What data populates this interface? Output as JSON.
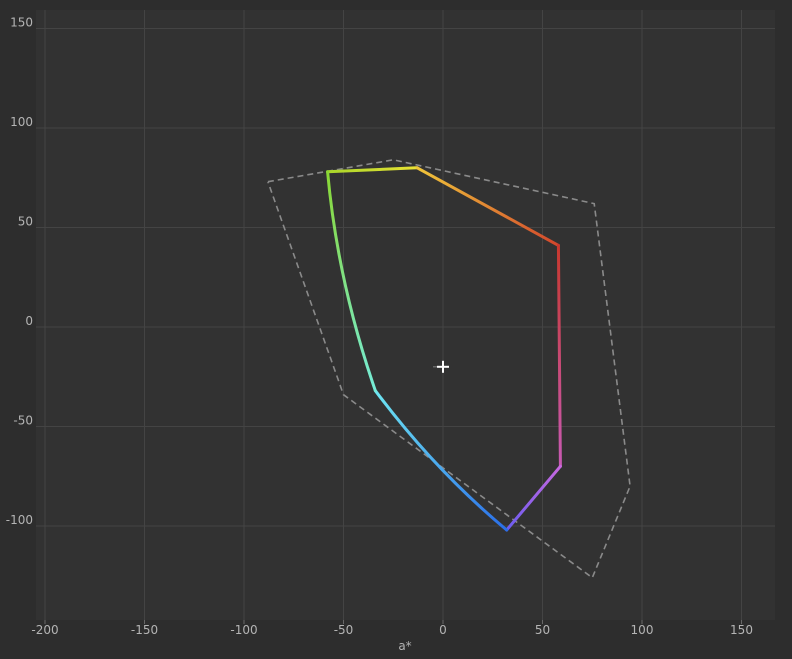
{
  "chart_data": {
    "type": "gamut-plot",
    "xlabel": "a*",
    "ylabel": "",
    "xlim": [
      -205,
      165
    ],
    "ylim": [
      -148,
      159
    ],
    "xticks": [
      -200,
      -150,
      -100,
      -50,
      0,
      50,
      100,
      150
    ],
    "yticks": [
      -100,
      -50,
      0,
      50,
      100,
      150
    ],
    "grid": true,
    "colors": {
      "background": "#2d2d2d",
      "plot_area": "#323232",
      "grid": "#444444",
      "tick_text": "#b4b4b4",
      "reference_outline": "#8a8a8a",
      "white_point": "#ffffff"
    },
    "reference_gamut": [
      {
        "x": -88,
        "y": 73
      },
      {
        "x": -25,
        "y": 84
      },
      {
        "x": 76,
        "y": 62
      },
      {
        "x": 94,
        "y": -80
      },
      {
        "x": 75,
        "y": -126
      },
      {
        "x": -50,
        "y": -34
      },
      {
        "x": -88,
        "y": 73
      }
    ],
    "gamut_series": {
      "name": "",
      "segments": [
        {
          "x1": -58,
          "y1": 78,
          "x2": -13,
          "y2": 80,
          "color_start": "#a8d62a",
          "color_end": "#e9e234"
        },
        {
          "x1": -13,
          "y1": 80,
          "x2": 58,
          "y2": 41,
          "color_start": "#f0c63a",
          "color_end": "#d2462c"
        },
        {
          "x1": 58,
          "y1": 41,
          "x2": 59,
          "y2": -70,
          "color_start": "#c8382e",
          "color_end": "#c85ab4"
        },
        {
          "x1": 59,
          "y1": -70,
          "x2": 32,
          "y2": -102,
          "color_start": "#c868e0",
          "color_end": "#6a5cf0"
        },
        {
          "x1": 32,
          "y1": -102,
          "x2": -34,
          "y2": -32,
          "color_start": "#2a6ee8",
          "color_end": "#6ee6f2"
        },
        {
          "x1": -34,
          "y1": -32,
          "x2": -58,
          "y2": 78,
          "color_start": "#76ecd8",
          "color_end": "#8ad834"
        }
      ]
    },
    "white_point": {
      "x": 0,
      "y": -20
    }
  }
}
